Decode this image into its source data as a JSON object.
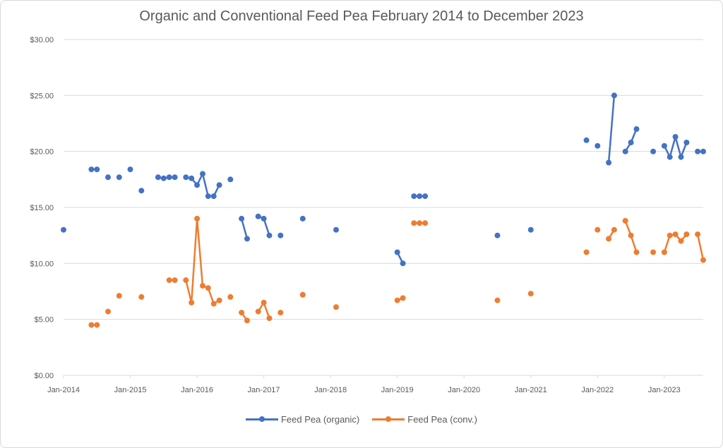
{
  "chart_data": {
    "type": "line",
    "title": "Organic and Conventional Feed Pea February 2014 to December 2023",
    "xlabel": "",
    "ylabel": "",
    "ylim": [
      0,
      30
    ],
    "y_ticks": [
      "$0.00",
      "$5.00",
      "$10.00",
      "$15.00",
      "$20.00",
      "$25.00",
      "$30.00"
    ],
    "y_tick_values": [
      0,
      5,
      10,
      15,
      20,
      25,
      30
    ],
    "x_range": [
      "2014-01",
      "2023-08"
    ],
    "x_ticks": [
      "Jan-2014",
      "Jan-2015",
      "Jan-2016",
      "Jan-2017",
      "Jan-2018",
      "Jan-2019",
      "Jan-2020",
      "Jan-2021",
      "Jan-2022",
      "Jan-2023"
    ],
    "x_tick_values": [
      "2014-01",
      "2015-01",
      "2016-01",
      "2017-01",
      "2018-01",
      "2019-01",
      "2020-01",
      "2021-01",
      "2022-01",
      "2023-01"
    ],
    "grid": true,
    "legend_position": "bottom",
    "series": [
      {
        "name": "Feed Pea (organic)",
        "color": "#4472c4",
        "points": [
          [
            "2014-01",
            13.0
          ],
          [
            "2014-06",
            18.4
          ],
          [
            "2014-07",
            18.4
          ],
          [
            "2014-09",
            17.7
          ],
          [
            "2014-11",
            17.7
          ],
          [
            "2015-01",
            18.4
          ],
          [
            "2015-03",
            16.5
          ],
          [
            "2015-06",
            17.7
          ],
          [
            "2015-07",
            17.6
          ],
          [
            "2015-08",
            17.7
          ],
          [
            "2015-09",
            17.7
          ],
          [
            "2015-11",
            17.7
          ],
          [
            "2015-12",
            17.6
          ],
          [
            "2016-01",
            17.0
          ],
          [
            "2016-02",
            18.0
          ],
          [
            "2016-03",
            16.0
          ],
          [
            "2016-04",
            16.0
          ],
          [
            "2016-05",
            17.0
          ],
          [
            "2016-07",
            17.5
          ],
          [
            "2016-09",
            14.0
          ],
          [
            "2016-10",
            12.2
          ],
          [
            "2016-12",
            14.2
          ],
          [
            "2017-01",
            14.0
          ],
          [
            "2017-02",
            12.5
          ],
          [
            "2017-04",
            12.5
          ],
          [
            "2017-08",
            14.0
          ],
          [
            "2018-02",
            13.0
          ],
          [
            "2019-01",
            11.0
          ],
          [
            "2019-02",
            10.0
          ],
          [
            "2019-04",
            16.0
          ],
          [
            "2019-05",
            16.0
          ],
          [
            "2019-06",
            16.0
          ],
          [
            "2020-07",
            12.5
          ],
          [
            "2021-01",
            13.0
          ],
          [
            "2021-11",
            21.0
          ],
          [
            "2022-01",
            20.5
          ],
          [
            "2022-03",
            19.0
          ],
          [
            "2022-04",
            25.0
          ],
          [
            "2022-06",
            20.0
          ],
          [
            "2022-07",
            20.8
          ],
          [
            "2022-08",
            22.0
          ],
          [
            "2022-11",
            20.0
          ],
          [
            "2023-01",
            20.5
          ],
          [
            "2023-02",
            19.5
          ],
          [
            "2023-03",
            21.3
          ],
          [
            "2023-04",
            19.5
          ],
          [
            "2023-05",
            20.8
          ],
          [
            "2023-07",
            20.0
          ],
          [
            "2023-08",
            20.0
          ]
        ]
      },
      {
        "name": "Feed Pea (conv.)",
        "color": "#ed7d31",
        "points": [
          [
            "2014-06",
            4.5
          ],
          [
            "2014-07",
            4.5
          ],
          [
            "2014-09",
            5.7
          ],
          [
            "2014-11",
            7.1
          ],
          [
            "2015-03",
            7.0
          ],
          [
            "2015-08",
            8.5
          ],
          [
            "2015-09",
            8.5
          ],
          [
            "2015-11",
            8.5
          ],
          [
            "2015-12",
            6.5
          ],
          [
            "2016-01",
            14.0
          ],
          [
            "2016-02",
            8.0
          ],
          [
            "2016-03",
            7.8
          ],
          [
            "2016-04",
            6.4
          ],
          [
            "2016-05",
            6.7
          ],
          [
            "2016-07",
            7.0
          ],
          [
            "2016-09",
            5.6
          ],
          [
            "2016-10",
            4.9
          ],
          [
            "2016-12",
            5.7
          ],
          [
            "2017-01",
            6.5
          ],
          [
            "2017-02",
            5.1
          ],
          [
            "2017-04",
            5.6
          ],
          [
            "2017-08",
            7.2
          ],
          [
            "2018-02",
            6.1
          ],
          [
            "2019-01",
            6.7
          ],
          [
            "2019-02",
            6.9
          ],
          [
            "2019-04",
            13.6
          ],
          [
            "2019-05",
            13.6
          ],
          [
            "2019-06",
            13.6
          ],
          [
            "2020-07",
            6.7
          ],
          [
            "2021-01",
            7.3
          ],
          [
            "2021-11",
            11.0
          ],
          [
            "2022-01",
            13.0
          ],
          [
            "2022-03",
            12.2
          ],
          [
            "2022-04",
            13.0
          ],
          [
            "2022-06",
            13.8
          ],
          [
            "2022-07",
            12.5
          ],
          [
            "2022-08",
            11.0
          ],
          [
            "2022-11",
            11.0
          ],
          [
            "2023-01",
            11.0
          ],
          [
            "2023-02",
            12.5
          ],
          [
            "2023-03",
            12.6
          ],
          [
            "2023-04",
            12.0
          ],
          [
            "2023-05",
            12.6
          ],
          [
            "2023-07",
            12.6
          ],
          [
            "2023-08",
            10.3
          ]
        ]
      }
    ]
  }
}
